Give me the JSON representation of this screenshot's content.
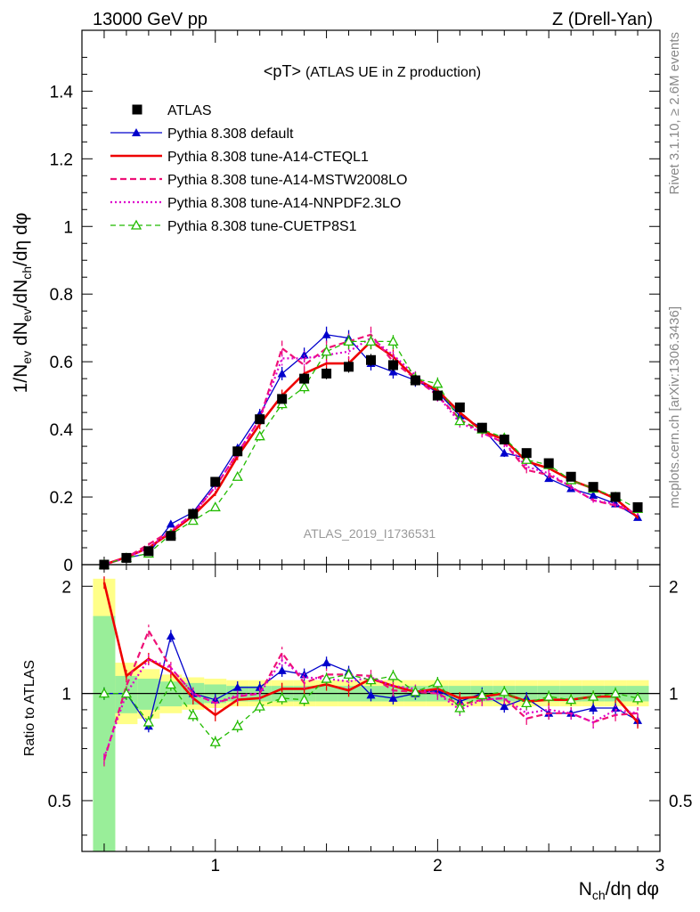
{
  "header": {
    "left": "13000 GeV pp",
    "right": "Z (Drell-Yan)"
  },
  "side_labels": {
    "rivet": "Rivet 3.1.10, ≥ 2.6M events",
    "mcplots": "mcplots.cern.ch [arXiv:1306.3436]"
  },
  "main_panel": {
    "title_main": "<pT>",
    "title_sub": "(ATLAS UE in Z production)",
    "ylabel": {
      "a": "1/N",
      "a_sub": "ev",
      "b": " dN",
      "b_sub": "ev",
      "c": "/dN",
      "c_sub": "ch",
      "d": "/dη dφ"
    },
    "analysis_id": "ATLAS_2019_I1736531",
    "yticks": [
      "0",
      "0.2",
      "0.4",
      "0.6",
      "0.8",
      "1",
      "1.2",
      "1.4"
    ]
  },
  "ratio_panel": {
    "ylabel": "Ratio to ATLAS",
    "yticks": [
      "0.5",
      "1",
      "2"
    ]
  },
  "xaxis": {
    "label_main": "N",
    "label_sub": "ch",
    "label_rest": "/dη dφ",
    "ticks": [
      "1",
      "2",
      "3"
    ]
  },
  "legend": [
    {
      "label": "ATLAS",
      "color": "#000000"
    },
    {
      "label": "Pythia 8.308 default",
      "color": "#0000cc"
    },
    {
      "label": "Pythia 8.308 tune-A14-CTEQL1",
      "color": "#ee0000"
    },
    {
      "label": "Pythia 8.308 tune-A14-MSTW2008LO",
      "color": "#ee1177"
    },
    {
      "label": "Pythia 8.308 tune-A14-NNPDF2.3LO",
      "color": "#dd00cc"
    },
    {
      "label": "Pythia 8.308 tune-CUETP8S1",
      "color": "#22bb00"
    }
  ],
  "chart_data": {
    "type": "line",
    "x": [
      0.5,
      0.6,
      0.7,
      0.8,
      0.9,
      1.0,
      1.1,
      1.2,
      1.3,
      1.4,
      1.5,
      1.6,
      1.7,
      1.8,
      1.9,
      2.0,
      2.1,
      2.2,
      2.3,
      2.4,
      2.5,
      2.6,
      2.7,
      2.8,
      2.9
    ],
    "xlim": [
      0.4,
      3.0
    ],
    "ylim": [
      0,
      1.58
    ],
    "ratio_ylim": [
      0.36,
      2.3
    ],
    "ratio_log": true,
    "series": [
      {
        "name": "ATLAS",
        "values": [
          0.0,
          0.02,
          0.04,
          0.085,
          0.15,
          0.245,
          0.335,
          0.43,
          0.49,
          0.55,
          0.565,
          0.585,
          0.605,
          0.59,
          0.545,
          0.5,
          0.465,
          0.405,
          0.37,
          0.33,
          0.3,
          0.26,
          0.23,
          0.2,
          0.17
        ]
      },
      {
        "name": "Pythia 8.308 default",
        "values": [
          0.0,
          0.02,
          0.033,
          0.12,
          0.155,
          0.24,
          0.345,
          0.445,
          0.565,
          0.62,
          0.68,
          0.67,
          0.595,
          0.57,
          0.545,
          0.51,
          0.44,
          0.405,
          0.33,
          0.315,
          0.255,
          0.225,
          0.205,
          0.18,
          0.14
        ]
      },
      {
        "name": "Pythia 8.308 tune-A14-CTEQL1",
        "values": [
          0.0,
          0.022,
          0.05,
          0.095,
          0.145,
          0.21,
          0.32,
          0.415,
          0.5,
          0.565,
          0.595,
          0.595,
          0.66,
          0.615,
          0.55,
          0.515,
          0.45,
          0.395,
          0.37,
          0.305,
          0.285,
          0.25,
          0.225,
          0.195,
          0.14
        ]
      },
      {
        "name": "Pythia 8.308 tune-A14-MSTW2008LO",
        "values": [
          0.0,
          0.021,
          0.06,
          0.1,
          0.15,
          0.23,
          0.33,
          0.43,
          0.64,
          0.59,
          0.64,
          0.66,
          0.68,
          0.6,
          0.55,
          0.5,
          0.43,
          0.39,
          0.36,
          0.28,
          0.265,
          0.23,
          0.19,
          0.175,
          0.15
        ]
      },
      {
        "name": "Pythia 8.308 tune-A14-NNPDF2.3LO",
        "values": [
          0.0,
          0.02,
          0.05,
          0.1,
          0.15,
          0.23,
          0.33,
          0.43,
          0.61,
          0.61,
          0.62,
          0.63,
          0.67,
          0.62,
          0.56,
          0.5,
          0.42,
          0.39,
          0.36,
          0.29,
          0.27,
          0.23,
          0.19,
          0.18,
          0.15
        ]
      },
      {
        "name": "Pythia 8.308 tune-CUETP8S1",
        "values": [
          0.0,
          0.02,
          0.033,
          0.09,
          0.13,
          0.17,
          0.26,
          0.38,
          0.475,
          0.525,
          0.63,
          0.66,
          0.66,
          0.66,
          0.55,
          0.535,
          0.425,
          0.4,
          0.375,
          0.31,
          0.295,
          0.25,
          0.225,
          0.2,
          0.165
        ]
      }
    ],
    "ratio_series": [
      {
        "name": "Pythia 8.308 default",
        "values": [
          1.0,
          1.0,
          0.81,
          1.45,
          1.0,
          0.96,
          1.04,
          1.04,
          1.16,
          1.13,
          1.22,
          1.15,
          0.99,
          0.97,
          1.0,
          1.02,
          0.95,
          1.0,
          0.92,
          0.97,
          0.88,
          0.88,
          0.91,
          0.91,
          0.84
        ]
      },
      {
        "name": "Pythia 8.308 tune-A14-CTEQL1",
        "values": [
          2.05,
          1.12,
          1.25,
          1.15,
          0.97,
          0.87,
          0.96,
          0.97,
          1.03,
          1.03,
          1.06,
          1.02,
          1.1,
          1.05,
          1.01,
          1.03,
          0.97,
          0.98,
          1.0,
          0.95,
          0.96,
          0.96,
          0.98,
          0.98,
          0.83
        ]
      },
      {
        "name": "Pythia 8.308 tune-A14-MSTW2008LO",
        "values": [
          0.65,
          1.05,
          1.5,
          1.18,
          1.0,
          0.94,
          0.98,
          1.0,
          1.3,
          1.07,
          1.13,
          1.13,
          1.12,
          1.02,
          1.01,
          1.0,
          0.93,
          0.96,
          0.97,
          0.85,
          0.88,
          0.88,
          0.83,
          0.87,
          0.88
        ]
      },
      {
        "name": "Pythia 8.308 tune-A14-NNPDF2.3LO",
        "values": [
          0.66,
          1.0,
          1.25,
          1.18,
          1.0,
          0.94,
          0.99,
          1.0,
          1.24,
          1.11,
          1.1,
          1.08,
          1.11,
          1.05,
          1.03,
          1.0,
          0.9,
          0.96,
          0.97,
          0.88,
          0.9,
          0.88,
          0.83,
          0.9,
          0.88
        ]
      },
      {
        "name": "Pythia 8.308 tune-CUETP8S1",
        "values": [
          1.0,
          1.0,
          0.83,
          1.06,
          0.87,
          0.73,
          0.81,
          0.92,
          0.97,
          0.96,
          1.1,
          1.13,
          1.09,
          1.12,
          1.01,
          1.07,
          0.91,
          0.99,
          1.01,
          0.94,
          0.98,
          0.96,
          0.98,
          1.0,
          0.97
        ]
      }
    ],
    "ratio_band_inner": [
      [
        0.35,
        1.65
      ],
      [
        0.88,
        1.12
      ],
      [
        0.9,
        1.1
      ],
      [
        0.92,
        1.08
      ],
      [
        0.93,
        1.07
      ],
      [
        0.94,
        1.06
      ],
      [
        0.95,
        1.05
      ],
      [
        0.95,
        1.05
      ],
      [
        0.95,
        1.05
      ],
      [
        0.95,
        1.05
      ],
      [
        0.95,
        1.05
      ],
      [
        0.95,
        1.05
      ],
      [
        0.95,
        1.05
      ],
      [
        0.95,
        1.05
      ],
      [
        0.95,
        1.05
      ],
      [
        0.95,
        1.05
      ],
      [
        0.95,
        1.05
      ],
      [
        0.95,
        1.05
      ],
      [
        0.95,
        1.05
      ],
      [
        0.95,
        1.05
      ],
      [
        0.95,
        1.05
      ],
      [
        0.95,
        1.05
      ],
      [
        0.95,
        1.05
      ],
      [
        0.95,
        1.05
      ],
      [
        0.95,
        1.05
      ]
    ],
    "ratio_band_outer": [
      [
        0.35,
        2.1
      ],
      [
        0.82,
        1.22
      ],
      [
        0.85,
        1.17
      ],
      [
        0.88,
        1.13
      ],
      [
        0.9,
        1.11
      ],
      [
        0.91,
        1.1
      ],
      [
        0.92,
        1.09
      ],
      [
        0.92,
        1.09
      ],
      [
        0.92,
        1.09
      ],
      [
        0.92,
        1.09
      ],
      [
        0.92,
        1.09
      ],
      [
        0.92,
        1.09
      ],
      [
        0.92,
        1.09
      ],
      [
        0.92,
        1.09
      ],
      [
        0.92,
        1.09
      ],
      [
        0.92,
        1.09
      ],
      [
        0.92,
        1.09
      ],
      [
        0.92,
        1.09
      ],
      [
        0.92,
        1.09
      ],
      [
        0.92,
        1.09
      ],
      [
        0.92,
        1.09
      ],
      [
        0.92,
        1.09
      ],
      [
        0.92,
        1.09
      ],
      [
        0.92,
        1.09
      ],
      [
        0.92,
        1.09
      ]
    ]
  }
}
